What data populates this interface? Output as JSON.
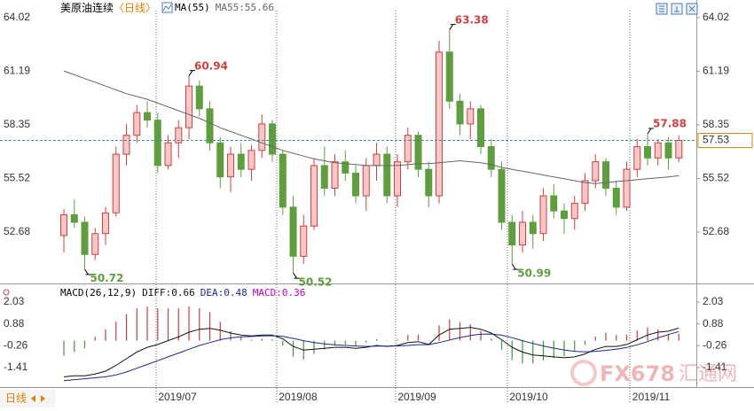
{
  "chart_data": [
    {
      "type": "candlestick",
      "title": "美原油连续",
      "period": "〈日线〉",
      "indicator": "MA(55)",
      "up_color": "#d04040",
      "down_color": "#5f9e3f",
      "last_price_color": "#e08a00",
      "open": [
        52.5,
        53.6,
        53.2,
        51.5,
        52.6,
        53.7,
        56.8,
        57.8,
        59.0,
        58.6,
        56.2,
        57.4,
        58.2,
        60.4,
        59.2,
        57.4,
        55.6,
        56.8,
        56.0,
        57.0,
        58.4,
        56.8,
        54.0,
        51.4,
        53.0,
        56.2,
        55.0,
        56.4,
        55.8,
        54.6,
        56.2,
        56.8,
        54.6,
        56.4,
        57.8,
        56.0,
        54.6,
        62.2,
        59.6,
        58.4,
        59.2,
        57.2,
        56.0,
        53.2,
        52.0,
        53.2,
        52.6,
        54.6,
        53.8,
        53.4,
        54.2,
        55.4,
        56.4,
        55.0,
        54.0,
        56.0,
        57.2,
        56.6,
        57.4,
        56.6
      ],
      "high": [
        53.9,
        54.4,
        53.5,
        52.9,
        54.0,
        57.2,
        58.4,
        59.4,
        59.6,
        59.0,
        57.8,
        58.6,
        60.94,
        60.7,
        59.6,
        57.7,
        57.2,
        57.4,
        57.3,
        58.9,
        58.6,
        57.0,
        54.6,
        53.6,
        56.6,
        57.2,
        56.8,
        57.0,
        56.2,
        56.6,
        57.4,
        57.2,
        56.8,
        58.2,
        58.0,
        56.4,
        62.8,
        63.38,
        60.0,
        59.6,
        59.4,
        57.6,
        56.4,
        53.6,
        53.8,
        53.6,
        55.0,
        55.2,
        54.2,
        54.6,
        55.8,
        56.8,
        56.6,
        55.4,
        56.4,
        57.6,
        57.88,
        57.6,
        57.7,
        57.8
      ],
      "low": [
        51.6,
        52.9,
        50.72,
        51.2,
        52.0,
        53.5,
        56.2,
        57.4,
        58.2,
        55.8,
        56.0,
        56.6,
        57.6,
        58.8,
        57.0,
        55.0,
        54.8,
        55.6,
        55.4,
        56.6,
        56.4,
        53.6,
        50.52,
        51.0,
        52.8,
        54.6,
        54.6,
        55.4,
        54.2,
        53.8,
        55.4,
        54.2,
        54.0,
        56.0,
        55.6,
        54.0,
        54.2,
        59.2,
        57.8,
        57.6,
        56.8,
        55.6,
        52.8,
        50.99,
        51.6,
        51.8,
        52.2,
        53.4,
        52.6,
        52.8,
        53.8,
        55.0,
        54.6,
        53.6,
        53.8,
        55.6,
        56.2,
        56.2,
        56.0,
        56.4
      ],
      "close": [
        53.6,
        53.2,
        51.5,
        52.6,
        53.7,
        56.8,
        57.8,
        59.0,
        58.6,
        56.2,
        57.4,
        58.2,
        60.4,
        59.2,
        57.4,
        55.6,
        56.8,
        56.0,
        57.0,
        58.4,
        56.8,
        54.0,
        51.4,
        53.0,
        56.2,
        55.0,
        56.4,
        55.8,
        54.6,
        56.2,
        56.8,
        54.6,
        56.4,
        57.8,
        56.0,
        54.6,
        62.2,
        59.6,
        58.4,
        59.2,
        57.2,
        56.0,
        53.2,
        52.0,
        53.2,
        52.6,
        54.6,
        53.8,
        53.4,
        54.2,
        55.4,
        56.4,
        55.0,
        54.0,
        56.0,
        57.2,
        56.6,
        57.4,
        56.6,
        57.53
      ],
      "ma": {
        "name": "MA55:",
        "color": "#666666",
        "values": [
          61.2,
          61.0,
          60.8,
          60.6,
          60.4,
          60.2,
          60.0,
          59.85,
          59.7,
          59.5,
          59.3,
          59.1,
          58.9,
          58.7,
          58.45,
          58.2,
          58.0,
          57.8,
          57.6,
          57.4,
          57.2,
          57.0,
          56.85,
          56.7,
          56.55,
          56.45,
          56.35,
          56.3,
          56.25,
          56.2,
          56.2,
          56.2,
          56.2,
          56.25,
          56.3,
          56.3,
          56.35,
          56.4,
          56.45,
          56.4,
          56.35,
          56.25,
          56.1,
          56.0,
          55.9,
          55.8,
          55.7,
          55.6,
          55.5,
          55.4,
          55.3,
          55.25,
          55.3,
          55.35,
          55.4,
          55.45,
          55.5,
          55.55,
          55.6,
          55.66
        ]
      },
      "annotations": [
        {
          "x": 2,
          "at": "low"
        },
        {
          "x": 12,
          "at": "high"
        },
        {
          "x": 22,
          "at": "low"
        },
        {
          "x": 37,
          "at": "high"
        },
        {
          "x": 43,
          "at": "low"
        },
        {
          "x": 56,
          "at": "high"
        }
      ],
      "xlim": [
        -6.13,
        60.68
      ],
      "xticks": [
        {
          "value": 8.85,
          "label": "2019/07"
        },
        {
          "value": 20.42,
          "label": "2019/08"
        },
        {
          "value": 31.83,
          "label": "2019/09"
        },
        {
          "value": 42.55,
          "label": "2019/10"
        },
        {
          "value": 54.3,
          "label": "2019/11"
        }
      ],
      "ylim": [
        50.06,
        64.39
      ],
      "yticks": [
        64.02,
        61.19,
        58.35,
        55.52,
        52.68
      ]
    },
    {
      "type": "macd",
      "title": "MACD(26,12,9)",
      "series": [
        {
          "name": "DIFF:",
          "color": "#111111",
          "values": [
            -1.9,
            -1.85,
            -1.85,
            -1.75,
            -1.6,
            -1.3,
            -0.95,
            -0.6,
            -0.35,
            -0.2,
            0.0,
            0.2,
            0.45,
            0.6,
            0.65,
            0.55,
            0.4,
            0.3,
            0.25,
            0.3,
            0.3,
            0.1,
            -0.3,
            -0.5,
            -0.45,
            -0.4,
            -0.35,
            -0.35,
            -0.4,
            -0.35,
            -0.25,
            -0.3,
            -0.25,
            -0.1,
            -0.05,
            -0.2,
            0.3,
            0.6,
            0.65,
            0.7,
            0.6,
            0.4,
            0.05,
            -0.35,
            -0.6,
            -0.75,
            -0.8,
            -0.85,
            -0.9,
            -0.85,
            -0.7,
            -0.45,
            -0.3,
            -0.3,
            -0.2,
            0.05,
            0.3,
            0.45,
            0.5,
            0.66
          ]
        },
        {
          "name": "DEA:",
          "color": "#1a2a8a",
          "values": [
            -2.1,
            -2.05,
            -2.0,
            -1.95,
            -1.9,
            -1.8,
            -1.65,
            -1.45,
            -1.25,
            -1.05,
            -0.85,
            -0.65,
            -0.45,
            -0.25,
            -0.1,
            0.05,
            0.15,
            0.2,
            0.22,
            0.25,
            0.26,
            0.23,
            0.12,
            0.0,
            -0.1,
            -0.17,
            -0.22,
            -0.25,
            -0.28,
            -0.3,
            -0.29,
            -0.29,
            -0.28,
            -0.25,
            -0.21,
            -0.21,
            -0.1,
            0.04,
            0.16,
            0.27,
            0.34,
            0.35,
            0.29,
            0.16,
            0.0,
            -0.15,
            -0.28,
            -0.39,
            -0.49,
            -0.56,
            -0.59,
            -0.56,
            -0.51,
            -0.45,
            -0.36,
            -0.22,
            -0.05,
            0.15,
            0.32,
            0.48
          ]
        },
        {
          "name": "MACD:",
          "color": "#c000c0",
          "up_color": "#c04040",
          "down_color": "#3a9a3a",
          "values": [
            -0.8,
            -0.6,
            -0.4,
            0.2,
            0.6,
            1.0,
            1.4,
            1.7,
            1.8,
            1.7,
            1.7,
            1.7,
            1.8,
            1.7,
            1.5,
            1.0,
            0.5,
            0.2,
            0.06,
            0.1,
            0.08,
            -0.26,
            -0.84,
            -1.0,
            -0.7,
            -0.46,
            -0.26,
            -0.2,
            -0.24,
            -0.1,
            0.08,
            -0.02,
            0.06,
            0.3,
            0.32,
            0.02,
            0.8,
            1.12,
            0.98,
            0.86,
            0.52,
            0.1,
            -0.48,
            -1.02,
            -1.2,
            -1.2,
            -1.04,
            -0.92,
            -0.82,
            -0.58,
            -0.22,
            0.22,
            0.42,
            0.3,
            0.32,
            0.54,
            0.7,
            0.6,
            0.36,
            0.36
          ]
        }
      ],
      "ylim": [
        -2.44,
        2.73
      ],
      "yticks": [
        2.03,
        0.88,
        -0.26,
        -1.41
      ]
    }
  ],
  "footer": {
    "period": "日线",
    "watermark": "FX678",
    "watermark_cn": "汇通网"
  }
}
